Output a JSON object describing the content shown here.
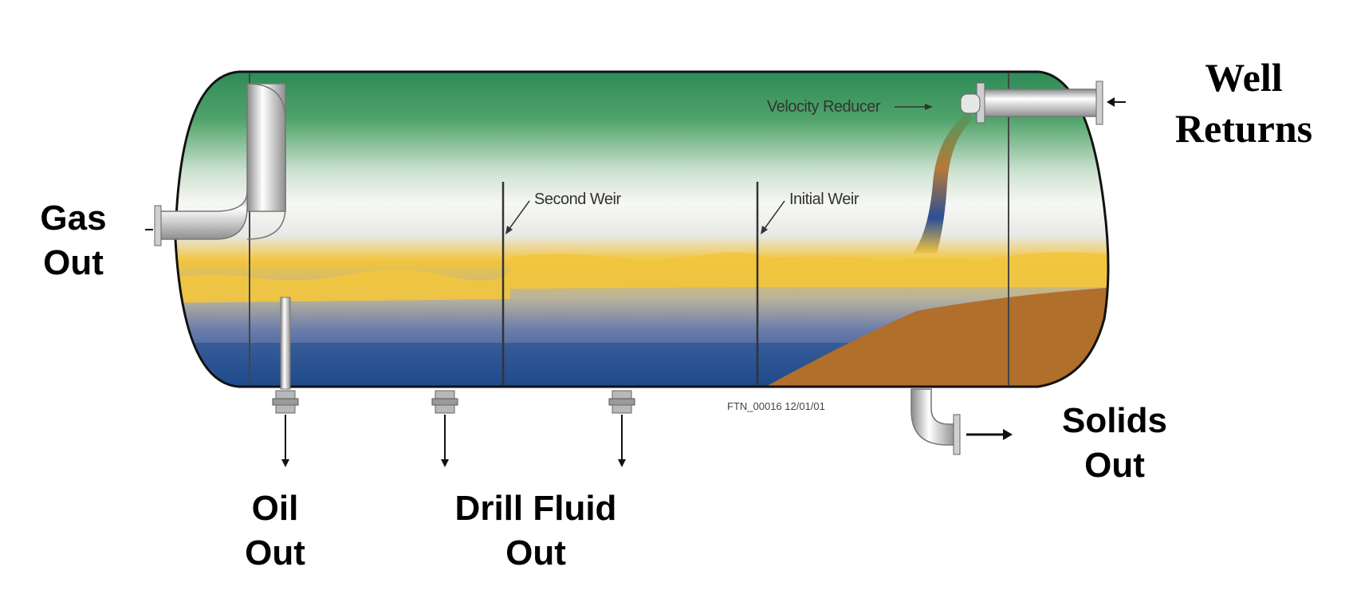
{
  "labels": {
    "gas_out": [
      "Gas",
      "Out"
    ],
    "well_returns": [
      "Well",
      "Returns"
    ],
    "oil_out": [
      "Oil",
      "Out"
    ],
    "drill_fluid_out": [
      "Drill Fluid",
      "Out"
    ],
    "solids_out": [
      "Solids",
      "Out"
    ]
  },
  "annotations": {
    "velocity_reducer": "Velocity Reducer",
    "second_weir": "Second Weir",
    "initial_weir": "Initial Weir",
    "drawing_id": "FTN_00016 12/01/01"
  },
  "colors": {
    "gas_green": "#2e8b57",
    "oil_yellow": "#f2c53d",
    "water_blue": "#1e4a8c",
    "solids_brown": "#b06f2a"
  }
}
